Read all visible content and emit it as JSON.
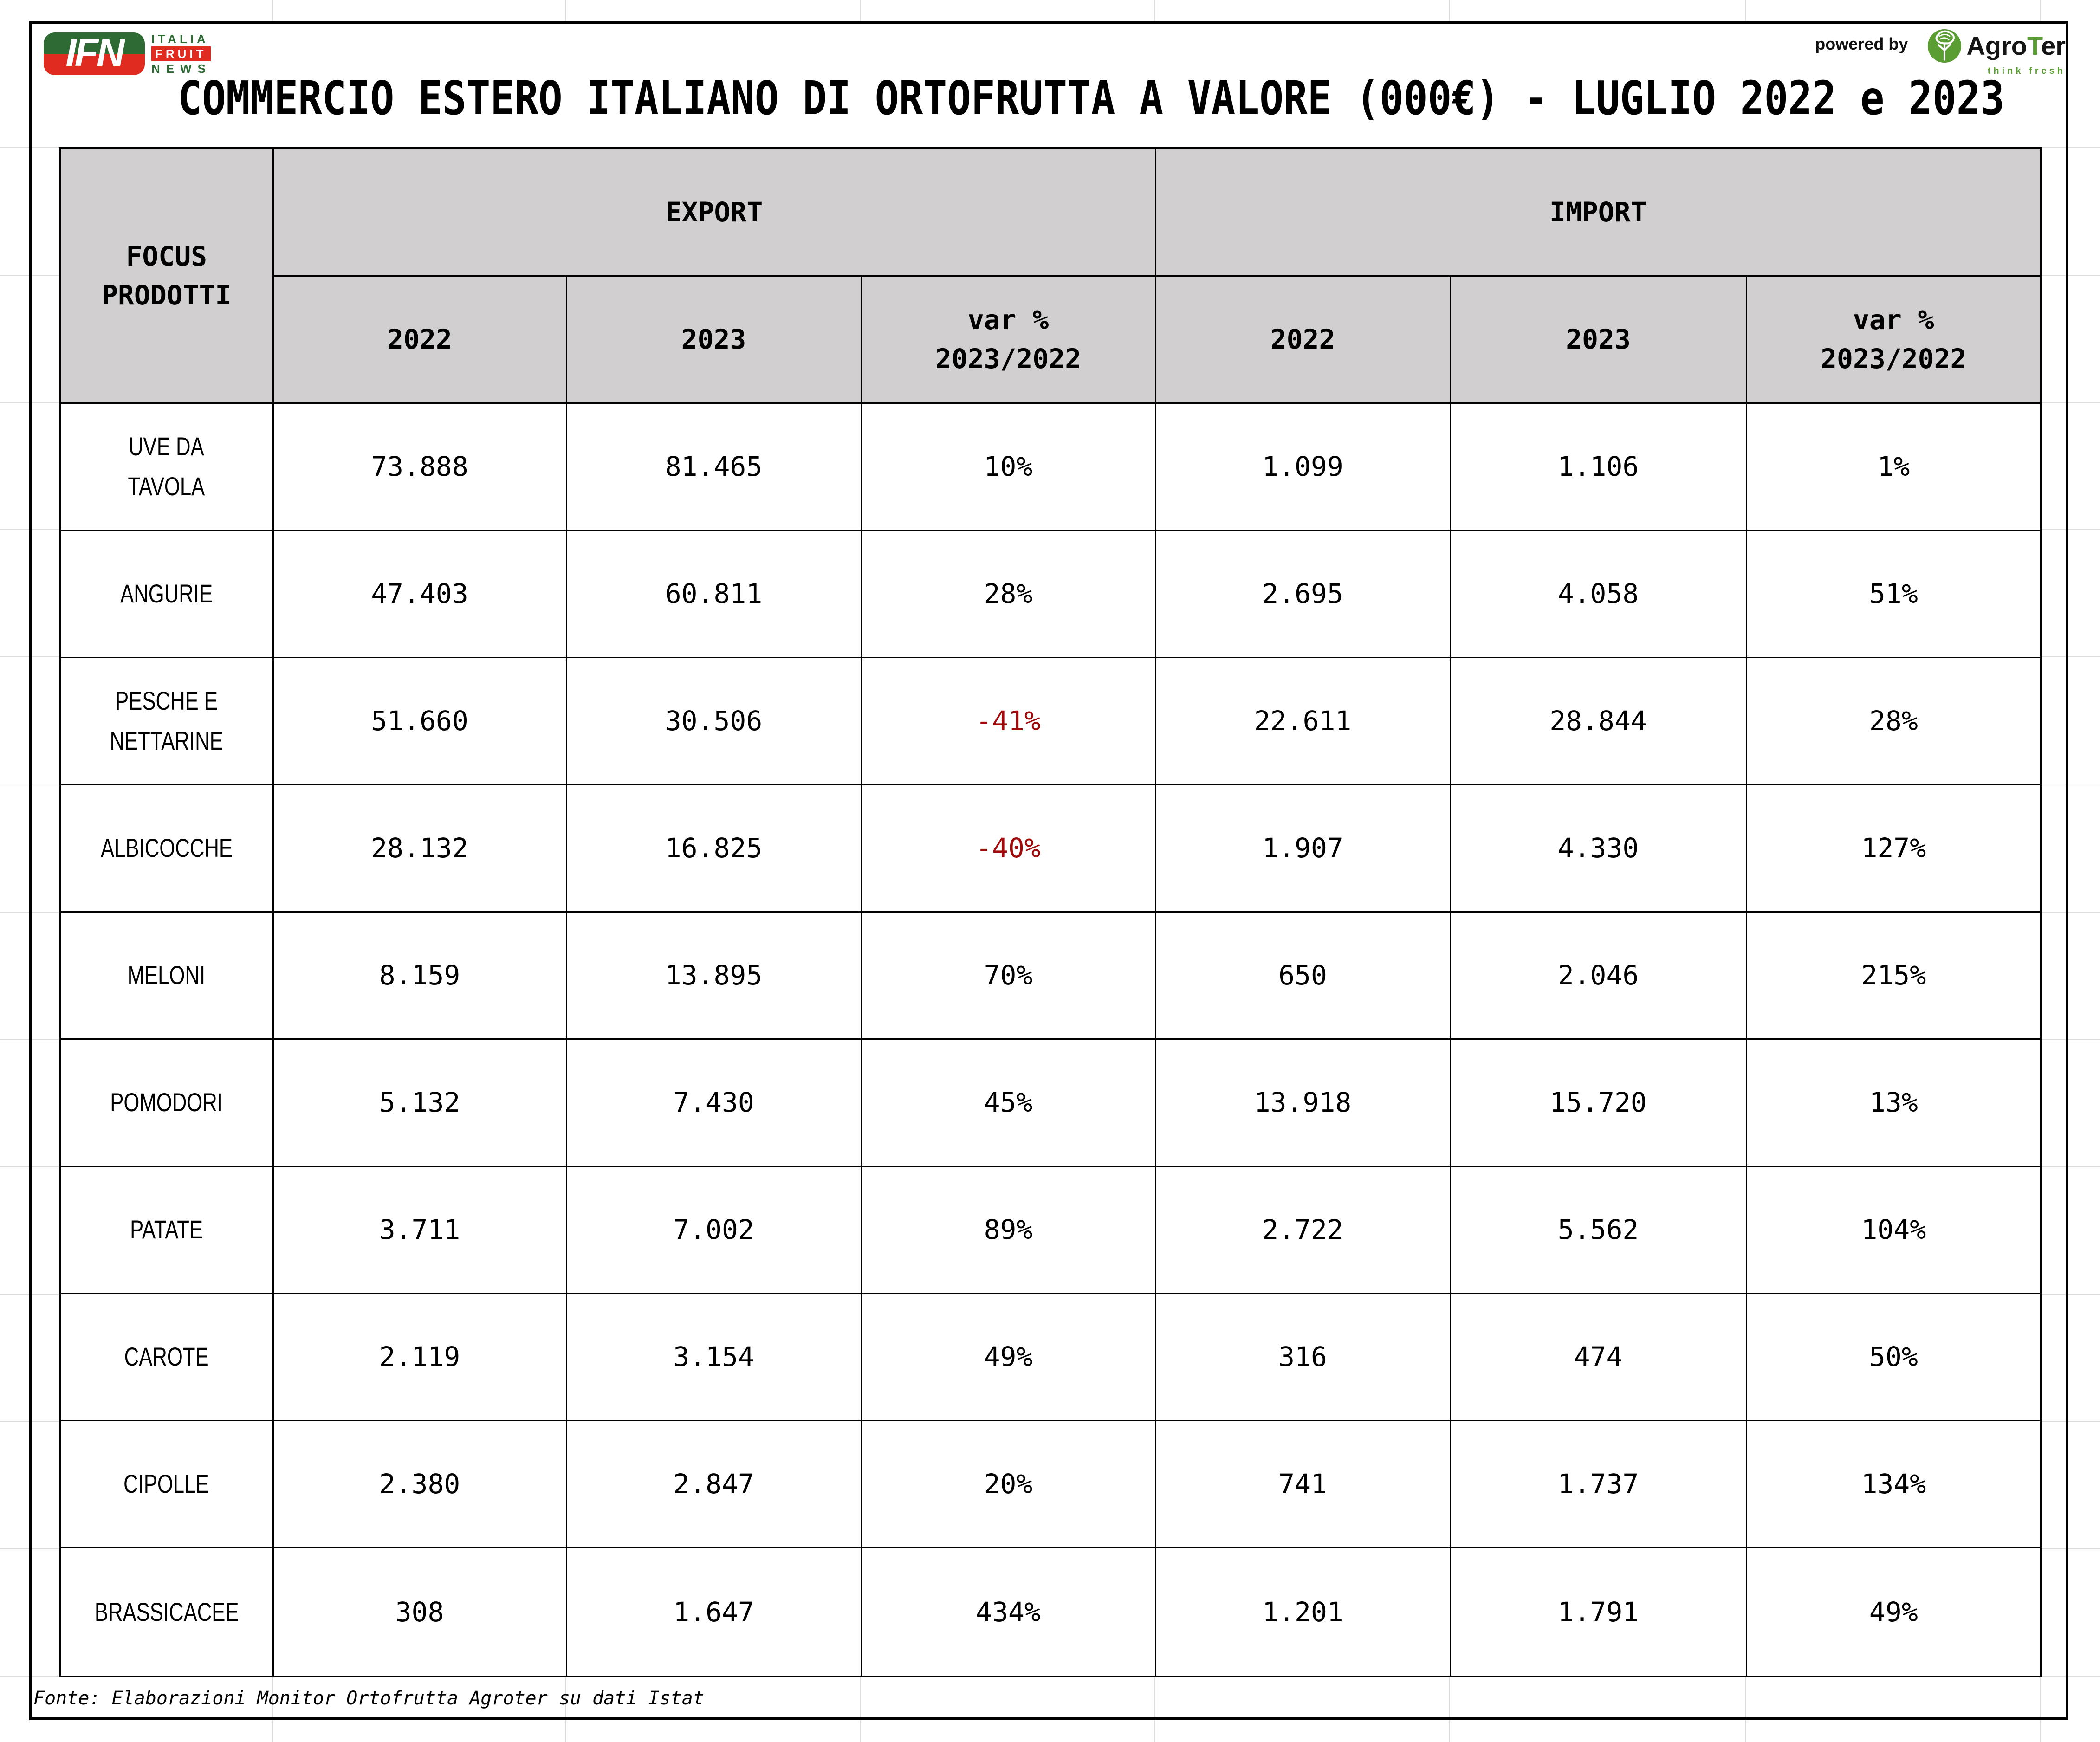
{
  "branding": {
    "ifn": {
      "abbr": "IFN",
      "word1": "ITALIA",
      "word2": "FRUIT",
      "word3": "NEWS"
    },
    "powered_by": "powered by",
    "agroter": {
      "name_left": "Agro",
      "name_mid": "T",
      "name_right": "er",
      "tagline": "think fresh"
    }
  },
  "title": "COMMERCIO ESTERO ITALIANO DI ORTOFRUTTA A VALORE (000€) - LUGLIO 2022 e 2023",
  "table": {
    "corner_header": "FOCUS\nPRODOTTI",
    "group_export": "EXPORT",
    "group_import": "IMPORT",
    "sub_2022": "2022",
    "sub_2023": "2023",
    "sub_var": "var %\n2023/2022",
    "rows": [
      {
        "product": "UVE DA\nTAVOLA",
        "export": [
          "73.888",
          "81.465",
          "10%"
        ],
        "import": [
          "1.099",
          "1.106",
          "1%"
        ]
      },
      {
        "product": "ANGURIE",
        "export": [
          "47.403",
          "60.811",
          "28%"
        ],
        "import": [
          "2.695",
          "4.058",
          "51%"
        ]
      },
      {
        "product": "PESCHE E\nNETTARINE",
        "export": [
          "51.660",
          "30.506",
          "-41%"
        ],
        "import": [
          "22.611",
          "28.844",
          "28%"
        ]
      },
      {
        "product": "ALBICOCCHE",
        "export": [
          "28.132",
          "16.825",
          "-40%"
        ],
        "import": [
          "1.907",
          "4.330",
          "127%"
        ]
      },
      {
        "product": "MELONI",
        "export": [
          "8.159",
          "13.895",
          "70%"
        ],
        "import": [
          "650",
          "2.046",
          "215%"
        ]
      },
      {
        "product": "POMODORI",
        "export": [
          "5.132",
          "7.430",
          "45%"
        ],
        "import": [
          "13.918",
          "15.720",
          "13%"
        ]
      },
      {
        "product": "PATATE",
        "export": [
          "3.711",
          "7.002",
          "89%"
        ],
        "import": [
          "2.722",
          "5.562",
          "104%"
        ]
      },
      {
        "product": "CAROTE",
        "export": [
          "2.119",
          "3.154",
          "49%"
        ],
        "import": [
          "316",
          "474",
          "50%"
        ]
      },
      {
        "product": "CIPOLLE",
        "export": [
          "2.380",
          "2.847",
          "20%"
        ],
        "import": [
          "741",
          "1.737",
          "134%"
        ]
      },
      {
        "product": "BRASSICACEE",
        "export": [
          "308",
          "1.647",
          "434%"
        ],
        "import": [
          "1.201",
          "1.791",
          "49%"
        ]
      }
    ]
  },
  "chart_data": {
    "type": "table",
    "title": "COMMERCIO ESTERO ITALIANO DI ORTOFRUTTA A VALORE (000€) - LUGLIO 2022 e 2023",
    "unit": "thousand EUR",
    "columns": [
      "FOCUS PRODOTTI",
      "EXPORT 2022",
      "EXPORT 2023",
      "EXPORT var % 2023/2022",
      "IMPORT 2022",
      "IMPORT 2023",
      "IMPORT var % 2023/2022"
    ],
    "rows": [
      {
        "product": "UVE DA TAVOLA",
        "export_2022": 73888,
        "export_2023": 81465,
        "export_var": "10%",
        "import_2022": 1099,
        "import_2023": 1106,
        "import_var": "1%"
      },
      {
        "product": "ANGURIE",
        "export_2022": 47403,
        "export_2023": 60811,
        "export_var": "28%",
        "import_2022": 2695,
        "import_2023": 4058,
        "import_var": "51%"
      },
      {
        "product": "PESCHE E NETTARINE",
        "export_2022": 51660,
        "export_2023": 30506,
        "export_var": "-41%",
        "import_2022": 22611,
        "import_2023": 28844,
        "import_var": "28%"
      },
      {
        "product": "ALBICOCCHE",
        "export_2022": 28132,
        "export_2023": 16825,
        "export_var": "-40%",
        "import_2022": 1907,
        "import_2023": 4330,
        "import_var": "127%"
      },
      {
        "product": "MELONI",
        "export_2022": 8159,
        "export_2023": 13895,
        "export_var": "70%",
        "import_2022": 650,
        "import_2023": 2046,
        "import_var": "215%"
      },
      {
        "product": "POMODORI",
        "export_2022": 5132,
        "export_2023": 7430,
        "export_var": "45%",
        "import_2022": 13918,
        "import_2023": 15720,
        "import_var": "13%"
      },
      {
        "product": "PATATE",
        "export_2022": 3711,
        "export_2023": 7002,
        "export_var": "89%",
        "import_2022": 2722,
        "import_2023": 5562,
        "import_var": "104%"
      },
      {
        "product": "CAROTE",
        "export_2022": 2119,
        "export_2023": 3154,
        "export_var": "49%",
        "import_2022": 316,
        "import_2023": 474,
        "import_var": "50%"
      },
      {
        "product": "CIPOLLE",
        "export_2022": 2380,
        "export_2023": 2847,
        "export_var": "20%",
        "import_2022": 741,
        "import_2023": 1737,
        "import_var": "134%"
      },
      {
        "product": "BRASSICACEE",
        "export_2022": 308,
        "export_2023": 1647,
        "export_var": "434%",
        "import_2022": 1201,
        "import_2023": 1791,
        "import_var": "49%"
      }
    ]
  },
  "footer": {
    "source": "Fonte: Elaborazioni Monitor Ortofrutta Agroter su dati Istat"
  },
  "colors": {
    "negative": "#9e0b0c",
    "header_bg": "#d1cfcf",
    "ifn_green": "#2e6b34",
    "ifn_red": "#e02b20",
    "agroter_green": "#5a9e33",
    "border": "#000000"
  }
}
